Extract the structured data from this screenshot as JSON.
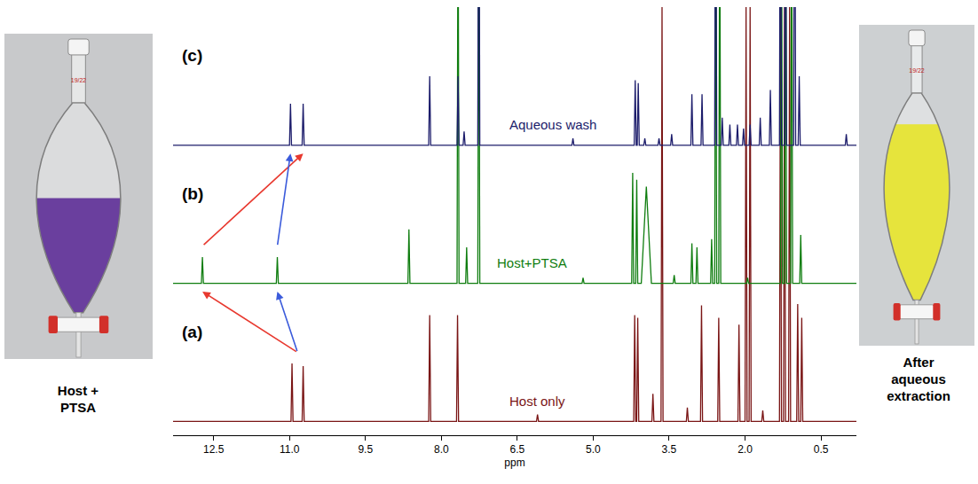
{
  "chart_data": {
    "type": "line",
    "x_label": "ppm",
    "xlim": [
      13.3,
      -0.2
    ],
    "xticks": [
      12.5,
      {
        "value": 11.0,
        "label": "11.0"
      },
      9.5,
      {
        "value": 8.0,
        "label": "8.0"
      },
      6.5,
      {
        "value": 5.0,
        "label": "5.0"
      },
      3.5,
      {
        "value": 2.0,
        "label": "2.0"
      },
      0.5
    ],
    "tick_labels": "x",
    "grid": false,
    "series": [
      {
        "name": "Host only",
        "panel": "(a)",
        "color": "#7a1515",
        "ylim": [
          -10,
          300
        ],
        "label_x": 6.1,
        "x": [
          13.3,
          10.97,
          10.95,
          10.93,
          10.75,
          10.73,
          10.71,
          8.25,
          8.23,
          8.21,
          7.7,
          7.68,
          7.66,
          6.12,
          6.1,
          6.08,
          4.2,
          4.18,
          4.16,
          4.14,
          4.12,
          4.1,
          3.84,
          3.82,
          3.8,
          3.66,
          3.64,
          3.62,
          3.16,
          3.14,
          3.12,
          2.88,
          2.86,
          2.84,
          2.54,
          2.52,
          2.5,
          2.14,
          2.12,
          2.1,
          2.0,
          1.98,
          1.96,
          1.92,
          1.9,
          1.88,
          1.67,
          1.65,
          1.63,
          1.32,
          1.3,
          1.28,
          1.24,
          1.22,
          1.2,
          1.14,
          1.12,
          1.1,
          0.98,
          0.96,
          0.94,
          0.9,
          0.88,
          0.86,
          -0.2
        ],
        "values": [
          0,
          0,
          42,
          0,
          0,
          40,
          0,
          0,
          77,
          0,
          0,
          77,
          0,
          0,
          5,
          0,
          0,
          77,
          0,
          0,
          75,
          0,
          0,
          20,
          0,
          0,
          300,
          0,
          0,
          10,
          0,
          0,
          84,
          0,
          0,
          75,
          0,
          0,
          70,
          0,
          0,
          300,
          0,
          0,
          300,
          0,
          0,
          8,
          0,
          0,
          300,
          0,
          0,
          300,
          0,
          0,
          300,
          0,
          0,
          85,
          0,
          0,
          75,
          0,
          0
        ]
      },
      {
        "name": "Host+PTSA",
        "panel": "(b)",
        "color": "#0f7d0f",
        "ylim": [
          -10,
          200
        ],
        "label_x": 6.2,
        "x": [
          13.3,
          12.74,
          12.72,
          12.7,
          11.26,
          11.24,
          11.22,
          8.66,
          8.64,
          8.62,
          7.69,
          7.67,
          7.65,
          7.52,
          7.5,
          7.48,
          7.28,
          7.26,
          7.24,
          5.22,
          5.2,
          5.18,
          4.24,
          4.22,
          4.2,
          4.16,
          4.14,
          4.12,
          4.05,
          3.95,
          3.85,
          3.42,
          3.4,
          3.38,
          3.07,
          3.05,
          3.03,
          2.97,
          2.95,
          2.93,
          2.68,
          2.66,
          2.64,
          2.6,
          2.58,
          2.56,
          2.52,
          2.5,
          2.48,
          1.97,
          1.95,
          1.93,
          1.3,
          1.28,
          1.26,
          1.22,
          1.2,
          1.18,
          1.1,
          1.08,
          1.06,
          0.92,
          0.9,
          0.88,
          -0.2
        ],
        "values": [
          0,
          0,
          19,
          0,
          0,
          19,
          0,
          0,
          39,
          0,
          0,
          300,
          0,
          0,
          26,
          0,
          0,
          300,
          0,
          0,
          4,
          0,
          0,
          80,
          0,
          0,
          75,
          0,
          0,
          70,
          0,
          0,
          6,
          0,
          0,
          29,
          0,
          0,
          26,
          0,
          0,
          32,
          0,
          0,
          300,
          0,
          0,
          300,
          0,
          0,
          4,
          0,
          0,
          300,
          0,
          0,
          300,
          0,
          0,
          300,
          0,
          0,
          35,
          0,
          0
        ]
      },
      {
        "name": "Aqueous wash",
        "panel": "(c)",
        "color": "#1c1c6b",
        "ylim": [
          -10,
          100
        ],
        "label_x": 5.8,
        "x": [
          13.3,
          11.0,
          10.98,
          10.96,
          10.75,
          10.73,
          10.71,
          8.25,
          8.23,
          8.21,
          7.69,
          7.67,
          7.65,
          7.57,
          7.55,
          7.53,
          7.28,
          7.26,
          7.24,
          5.42,
          5.4,
          5.38,
          4.19,
          4.17,
          4.15,
          4.13,
          4.11,
          4.09,
          4.0,
          3.98,
          3.96,
          3.72,
          3.7,
          3.68,
          3.47,
          3.45,
          3.43,
          3.07,
          3.05,
          3.03,
          2.87,
          2.85,
          2.83,
          2.6,
          2.58,
          2.56,
          2.47,
          2.45,
          2.43,
          2.32,
          2.3,
          2.28,
          2.17,
          2.15,
          2.13,
          2.05,
          2.03,
          2.01,
          1.92,
          1.9,
          1.88,
          1.72,
          1.7,
          1.68,
          1.52,
          1.5,
          1.48,
          1.32,
          1.3,
          1.28,
          1.22,
          1.2,
          1.18,
          1.04,
          1.02,
          1.0,
          0.95,
          0.93,
          0.91,
          0.02,
          0.0,
          -0.02,
          -0.2
        ],
        "values": [
          0,
          0,
          30,
          0,
          0,
          30,
          0,
          0,
          50,
          0,
          0,
          50,
          0,
          0,
          10,
          0,
          0,
          300,
          0,
          0,
          5,
          0,
          0,
          47,
          0,
          0,
          45,
          0,
          0,
          5,
          0,
          0,
          5,
          0,
          0,
          8,
          0,
          0,
          37,
          0,
          0,
          37,
          0,
          0,
          300,
          0,
          0,
          20,
          0,
          0,
          15,
          0,
          0,
          15,
          0,
          0,
          12,
          0,
          0,
          15,
          0,
          0,
          20,
          0,
          0,
          40,
          0,
          0,
          300,
          0,
          0,
          300,
          0,
          0,
          300,
          0,
          0,
          50,
          0,
          0,
          8,
          0,
          0
        ]
      }
    ],
    "arrows": [
      {
        "from": 0,
        "to": 1,
        "x0": 10.84,
        "x1": 12.72,
        "color": "#e8392f"
      },
      {
        "from": 0,
        "to": 1,
        "x0": 10.84,
        "x1": 11.24,
        "color": "#3b5bdb"
      },
      {
        "from": 1,
        "to": 2,
        "x0": 12.72,
        "x1": 10.73,
        "color": "#e8392f"
      },
      {
        "from": 1,
        "to": 2,
        "x0": 11.24,
        "x1": 10.98,
        "color": "#3b5bdb"
      }
    ]
  },
  "images": [
    {
      "caption": "Host + PTSA",
      "stamp": "19/22",
      "liquid_color": "#6a3f9e"
    },
    {
      "caption": "After aqueous extraction",
      "stamp": "19/22",
      "liquid_color": "#e6e43c"
    }
  ]
}
